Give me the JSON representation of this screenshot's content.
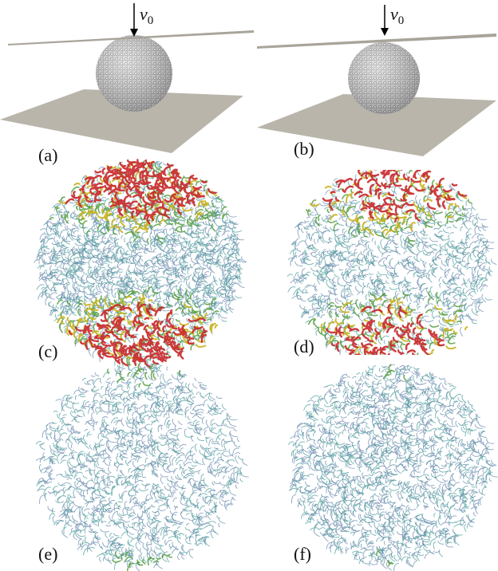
{
  "panels": [
    {
      "label": "(a)",
      "arrow_label": "v",
      "arrow_subscript": "0"
    },
    {
      "label": "(b)",
      "arrow_label": "v",
      "arrow_subscript": "0"
    },
    {
      "label": "(c)"
    },
    {
      "label": "(d)"
    },
    {
      "label": "(e)"
    },
    {
      "label": "(f)"
    }
  ]
}
